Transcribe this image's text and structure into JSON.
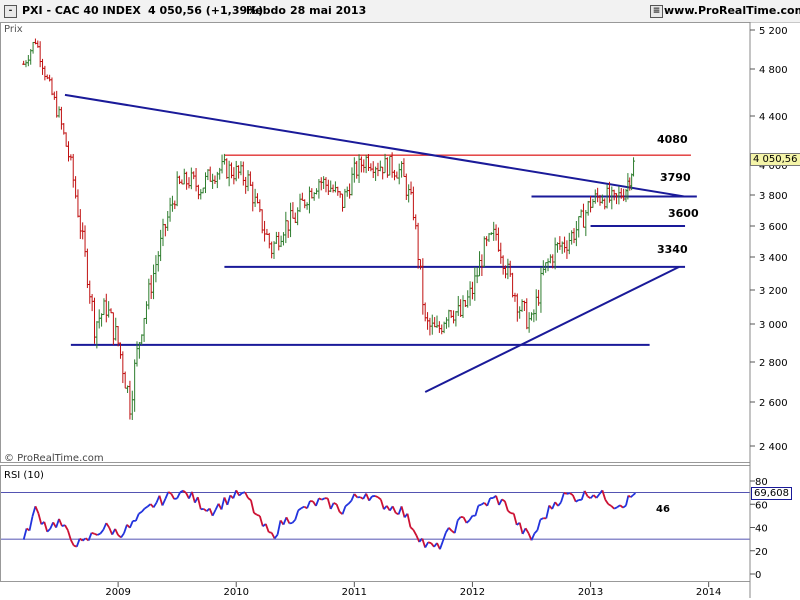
{
  "header": {
    "title": "PXI - CAC 40 INDEX",
    "last": "4 050,56 (+1,39%)",
    "period": "Hebdo",
    "date": "28 mai 2013",
    "site": "www.ProRealTime.com"
  },
  "price_panel": {
    "label": "Prix",
    "watermark": "© ProRealTime.com",
    "last_tag": "4 050,56",
    "annotations": [
      "4080",
      "3790",
      "3600",
      "3340"
    ]
  },
  "rsi_panel": {
    "label": "RSI (10)",
    "last_tag": "69,608",
    "annotation": "46"
  },
  "colors": {
    "up": "#2e7d2e",
    "down": "#c01010",
    "trend": "#1a1a99",
    "resistance": "#e03030",
    "rsi_up": "#2233dd",
    "rsi_down": "#cc1133"
  },
  "chart_data": [
    {
      "type": "line",
      "name": "price",
      "title": "PXI - CAC 40 INDEX",
      "ylabel": "Prix",
      "ylim": [
        2300,
        5300
      ],
      "x_ticks": [
        "2009",
        "2010",
        "2011",
        "2012",
        "2013",
        "2014"
      ],
      "y_ticks": [
        "5 200",
        "4 800",
        "4 400",
        "4 000",
        "3 800",
        "3 600",
        "3 400",
        "3 200",
        "3 000",
        "2 800",
        "2 600",
        "2 400"
      ],
      "x": [
        2008.2,
        2008.3,
        2008.4,
        2008.5,
        2008.6,
        2008.7,
        2008.8,
        2008.9,
        2009.0,
        2009.1,
        2009.2,
        2009.3,
        2009.4,
        2009.5,
        2009.6,
        2009.7,
        2009.8,
        2009.9,
        2010.0,
        2010.1,
        2010.2,
        2010.3,
        2010.4,
        2010.5,
        2010.6,
        2010.7,
        2010.8,
        2010.9,
        2011.0,
        2011.1,
        2011.2,
        2011.3,
        2011.4,
        2011.5,
        2011.6,
        2011.7,
        2011.8,
        2011.9,
        2012.0,
        2012.1,
        2012.2,
        2012.3,
        2012.4,
        2012.5,
        2012.6,
        2012.7,
        2012.8,
        2012.9,
        2013.0,
        2013.1,
        2013.2,
        2013.3,
        2013.38
      ],
      "values": [
        4850,
        5100,
        4700,
        4400,
        4000,
        3500,
        3000,
        3100,
        2900,
        2600,
        3000,
        3300,
        3600,
        3850,
        3900,
        3850,
        3950,
        3980,
        3950,
        3900,
        3650,
        3450,
        3600,
        3650,
        3800,
        3900,
        3850,
        3750,
        3950,
        4050,
        4000,
        4000,
        3950,
        3700,
        3000,
        2950,
        3100,
        3050,
        3200,
        3450,
        3550,
        3300,
        3100,
        3000,
        3300,
        3450,
        3500,
        3600,
        3750,
        3800,
        3750,
        3850,
        4050
      ],
      "ohlc_style": true
    },
    {
      "type": "line",
      "name": "RSI (10)",
      "ylim": [
        0,
        80
      ],
      "y_ticks": [
        "80",
        "60",
        "40",
        "20",
        "0"
      ],
      "reference_lines": [
        70,
        30
      ],
      "x": [
        2008.2,
        2008.3,
        2008.4,
        2008.5,
        2008.6,
        2008.7,
        2008.8,
        2008.9,
        2009.0,
        2009.1,
        2009.2,
        2009.3,
        2009.4,
        2009.5,
        2009.6,
        2009.7,
        2009.8,
        2009.9,
        2010.0,
        2010.1,
        2010.2,
        2010.3,
        2010.4,
        2010.5,
        2010.6,
        2010.7,
        2010.8,
        2010.9,
        2011.0,
        2011.1,
        2011.2,
        2011.3,
        2011.4,
        2011.5,
        2011.6,
        2011.7,
        2011.8,
        2011.9,
        2012.0,
        2012.1,
        2012.2,
        2012.3,
        2012.4,
        2012.5,
        2012.6,
        2012.7,
        2012.8,
        2012.9,
        2013.0,
        2013.1,
        2013.2,
        2013.3,
        2013.38
      ],
      "values": [
        28,
        55,
        40,
        45,
        30,
        25,
        35,
        40,
        35,
        40,
        50,
        60,
        65,
        70,
        68,
        60,
        55,
        62,
        70,
        65,
        45,
        32,
        45,
        50,
        58,
        62,
        60,
        55,
        65,
        70,
        62,
        58,
        55,
        40,
        25,
        22,
        35,
        45,
        50,
        60,
        65,
        58,
        40,
        30,
        48,
        62,
        68,
        66,
        70,
        68,
        60,
        62,
        69.608
      ]
    }
  ],
  "trendlines": [
    {
      "name": "resistance-4080",
      "label": "4080",
      "from": [
        2009.9,
        4080
      ],
      "to": [
        2013.85,
        4080
      ],
      "color": "resistance"
    },
    {
      "name": "downtrend",
      "from": [
        2008.55,
        4580
      ],
      "to": [
        2013.8,
        3790
      ],
      "color": "trend"
    },
    {
      "name": "level-3790",
      "label": "3790",
      "from": [
        2012.5,
        3790
      ],
      "to": [
        2013.9,
        3790
      ],
      "color": "trend"
    },
    {
      "name": "level-3600",
      "label": "3600",
      "from": [
        2013.0,
        3600
      ],
      "to": [
        2013.8,
        3600
      ],
      "color": "trend"
    },
    {
      "name": "level-3340",
      "label": "3340",
      "from": [
        2009.9,
        3340
      ],
      "to": [
        2013.8,
        3340
      ],
      "color": "trend"
    },
    {
      "name": "uptrend",
      "from": [
        2011.6,
        2650
      ],
      "to": [
        2013.75,
        3340
      ],
      "color": "trend"
    },
    {
      "name": "support-2890",
      "from": [
        2008.6,
        2890
      ],
      "to": [
        2013.5,
        2890
      ],
      "color": "trend"
    }
  ]
}
